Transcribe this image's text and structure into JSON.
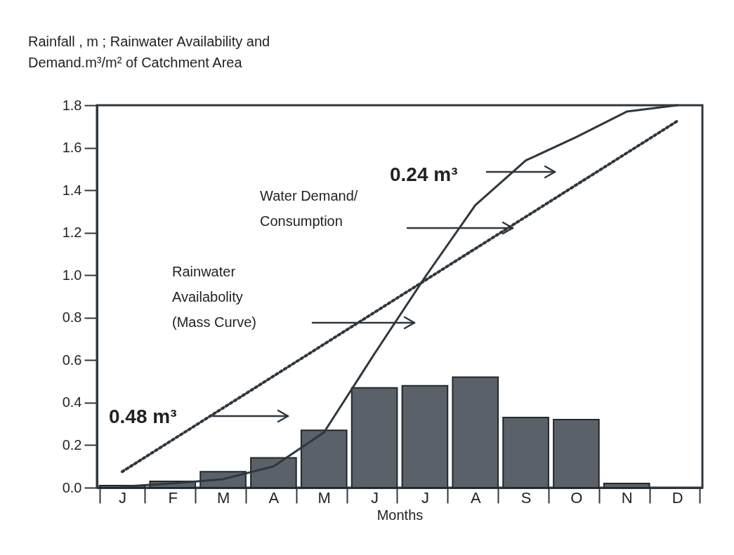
{
  "chart_data": {
    "type": "bar",
    "title": "Rainfall , m ; Rainwater Availability and Demand.m³/m² of Catchment Area",
    "xlabel": "Months",
    "categories": [
      "J",
      "F",
      "M",
      "A",
      "M",
      "J",
      "J",
      "A",
      "S",
      "O",
      "N",
      "D"
    ],
    "ylim": [
      0,
      1.8
    ],
    "yticks": [
      {
        "value": 0,
        "label": "0.0"
      },
      0.2,
      0.4,
      0.6,
      0.8,
      {
        "value": 1,
        "label": "1.0"
      },
      1.2,
      1.4,
      1.6,
      1.8
    ],
    "grid": false,
    "series": [
      {
        "color": "#5b6168",
        "values": [
          0.01,
          0.03,
          0.075,
          0.14,
          0.27,
          0.47,
          0.48,
          0.52,
          0.33,
          0.32,
          0.02,
          null
        ]
      },
      {
        "type": "line",
        "color": "#2f373d",
        "line_style": "solid",
        "values": [
          0.005,
          0.02,
          0.04,
          0.1,
          0.26,
          0.63,
          0.99,
          1.33,
          1.54,
          1.65,
          1.77,
          1.8
        ]
      },
      {
        "type": "line",
        "color": "#2f373d",
        "line_style": "dotted",
        "values": [
          0.075,
          0.225,
          0.375,
          0.525,
          0.675,
          0.825,
          0.975,
          1.125,
          1.275,
          1.425,
          1.575,
          1.725
        ]
      }
    ],
    "annotations": [
      "0.48 m³",
      "Rainwater Availabolity (Mass Curve)",
      "Water Demand/ Consumption",
      "0.24 m³"
    ]
  }
}
